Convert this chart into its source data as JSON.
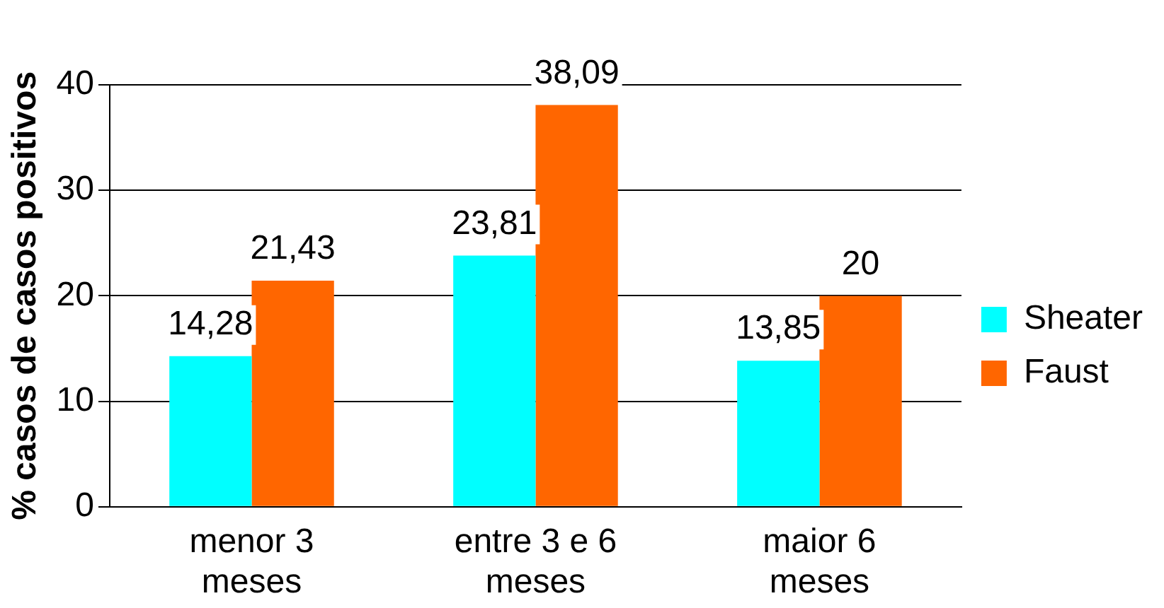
{
  "chart_data": {
    "type": "bar",
    "ylabel": "% casos de casos positivos",
    "categories": [
      "menor 3 meses",
      "entre 3 e 6 meses",
      "maior 6 meses"
    ],
    "series": [
      {
        "name": "Sheater",
        "color": "#00ffff",
        "values": [
          14.28,
          23.81,
          13.85
        ],
        "value_labels": [
          "14,28",
          "23,81",
          "13,85"
        ]
      },
      {
        "name": "Faust",
        "color": "#ff6600",
        "values": [
          21.43,
          38.09,
          20
        ],
        "value_labels": [
          "21,43",
          "38,09",
          "20"
        ]
      }
    ],
    "ylim": [
      0,
      40
    ],
    "yticks": [
      0,
      10,
      20,
      30,
      40
    ],
    "grid": "y",
    "legend": "right"
  }
}
